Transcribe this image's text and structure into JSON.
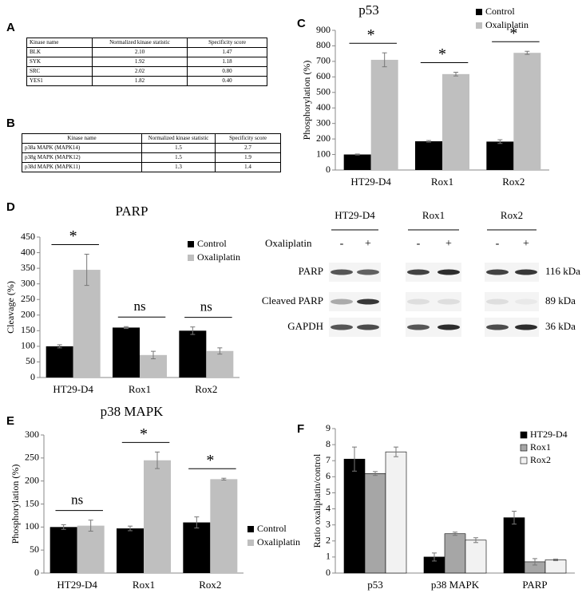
{
  "panel_labels": [
    "A",
    "B",
    "C",
    "D",
    "E",
    "F"
  ],
  "tables": [
    {
      "header": [
        "Kinase name",
        "Normalized kinase statistic",
        "Specificity score"
      ],
      "rows": [
        [
          "BLK",
          "2.10",
          "1.47"
        ],
        [
          "SYK",
          "1.92",
          "1.18"
        ],
        [
          "SRC",
          "2.02",
          "0.80"
        ],
        [
          "YES1",
          "1.82",
          "0.40"
        ]
      ]
    },
    {
      "header": [
        "Kinase name",
        "Normalized kinase statistic",
        "Specificity score"
      ],
      "rows": [
        [
          "p38a MAPK (MAPK14)",
          "1.5",
          "2.7"
        ],
        [
          "p38g MAPK (MAPK12)",
          "1.5",
          "1.9"
        ],
        [
          "p38d MAPK (MAPK11)",
          "1.3",
          "1.4"
        ]
      ]
    }
  ],
  "blot": {
    "groups": [
      "HT29-D4",
      "Rox1",
      "Rox2"
    ],
    "treatment": "Oxaliplatin",
    "treatment_labels": [
      "-",
      "+"
    ],
    "rows": [
      {
        "label": "PARP",
        "size": "116 kDa"
      },
      {
        "label": "Cleaved PARP",
        "size": "89 kDa"
      },
      {
        "label": "GAPDH",
        "size": "36 kDa"
      }
    ]
  },
  "chart_data": [
    {
      "type": "bar",
      "title": "p53",
      "y_label": "Phosphorylation (%)",
      "categories": [
        "HT29-D4",
        "Rox1",
        "Rox2"
      ],
      "series": [
        {
          "name": "Control",
          "color": "#000000",
          "values": [
            100,
            185,
            183
          ],
          "errors": [
            3,
            5,
            12
          ]
        },
        {
          "name": "Oxaliplatin",
          "color": "#bfbfbf",
          "values": [
            710,
            618,
            755
          ],
          "errors": [
            45,
            12,
            10
          ]
        }
      ],
      "annotations": [
        "*",
        "*",
        "*"
      ],
      "ylim": [
        0,
        900
      ],
      "yticks": [
        0,
        100,
        200,
        300,
        400,
        500,
        600,
        700,
        800,
        900
      ],
      "legend": "upper right"
    },
    {
      "type": "bar",
      "title": "PARP",
      "y_label": "Cleavage (%)",
      "categories": [
        "HT29-D4",
        "Rox1",
        "Rox2"
      ],
      "series": [
        {
          "name": "Control",
          "color": "#000000",
          "values": [
            100,
            160,
            150
          ],
          "errors": [
            5,
            3,
            12
          ]
        },
        {
          "name": "Oxaliplatin",
          "color": "#bfbfbf",
          "values": [
            345,
            72,
            85
          ],
          "errors": [
            50,
            12,
            10
          ]
        }
      ],
      "annotations": [
        "*",
        "ns",
        "ns"
      ],
      "ylim": [
        0,
        450
      ],
      "yticks": [
        0,
        50,
        100,
        150,
        200,
        250,
        300,
        350,
        400,
        450
      ],
      "legend": "upper right"
    },
    {
      "type": "bar",
      "title": "p38 MAPK",
      "y_label": "Phosphorylation (%)",
      "categories": [
        "HT29-D4",
        "Rox1",
        "Rox2"
      ],
      "series": [
        {
          "name": "Control",
          "color": "#000000",
          "values": [
            100,
            97,
            110
          ],
          "errors": [
            5,
            5,
            12
          ]
        },
        {
          "name": "Oxaliplatin",
          "color": "#bfbfbf",
          "values": [
            103,
            245,
            204
          ],
          "errors": [
            12,
            18,
            2
          ]
        }
      ],
      "annotations": [
        "ns",
        "*",
        "*"
      ],
      "ylim": [
        0,
        300
      ],
      "yticks": [
        0,
        50,
        100,
        150,
        200,
        250,
        300
      ],
      "legend": "right"
    },
    {
      "type": "bar",
      "y_label": "Ratio oxaliplatin/control",
      "categories": [
        "p53",
        "p38 MAPK",
        "PARP"
      ],
      "series": [
        {
          "name": "HT29-D4",
          "color": "#000000",
          "values": [
            7.1,
            1.0,
            3.45
          ],
          "errors": [
            0.75,
            0.25,
            0.4
          ]
        },
        {
          "name": "Rox1",
          "color": "#a6a6a6",
          "values": [
            6.2,
            2.45,
            0.7
          ],
          "errors": [
            0.12,
            0.1,
            0.2
          ]
        },
        {
          "name": "Rox2",
          "color": "#f2f2f2",
          "values": [
            7.55,
            2.05,
            0.82
          ],
          "errors": [
            0.3,
            0.15,
            0.05
          ]
        }
      ],
      "ylim": [
        0,
        9
      ],
      "yticks": [
        0,
        1,
        2,
        3,
        4,
        5,
        6,
        7,
        8,
        9
      ],
      "legend": "upper right"
    }
  ]
}
